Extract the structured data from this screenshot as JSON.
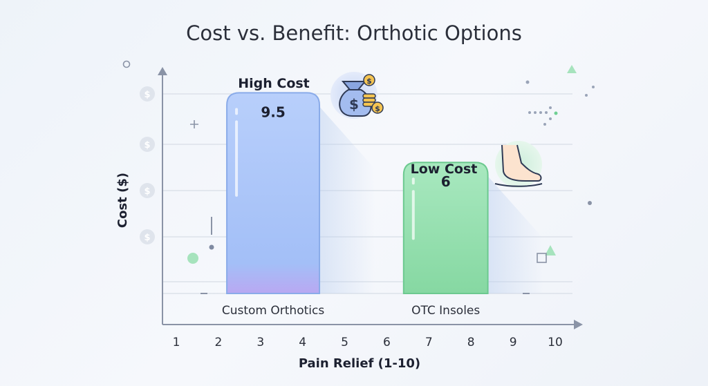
{
  "chart_data": {
    "type": "bar",
    "title": "Cost vs. Benefit: Orthotic Options",
    "xlabel": "Pain Relief (1-10)",
    "ylabel": "Cost ($)",
    "x_ticks": [
      "1",
      "2",
      "3",
      "4",
      "5",
      "6",
      "7",
      "8",
      "9",
      "10"
    ],
    "xlim": [
      1,
      10
    ],
    "ylim": [
      0,
      10
    ],
    "y_tick_icon": "dollar-coin-icon",
    "grid": true,
    "categories": [
      "Custom Orthotics",
      "OTC Insoles"
    ],
    "values": [
      9.5,
      6
    ],
    "value_labels": [
      "9.5",
      "6"
    ],
    "bar_x_span": [
      [
        2.2,
        4.4
      ],
      [
        6.4,
        8.4
      ]
    ],
    "annotations": [
      {
        "text": "High Cost",
        "icon": "money-bag-icon",
        "for": "Custom Orthotics"
      },
      {
        "text": "Low Cost",
        "icon": "foot-icon",
        "for": "OTC Insoles"
      }
    ],
    "colors": {
      "custom_orthotics": "#a8c4f8",
      "otc_insoles": "#98e0b0",
      "axis": "#8a93a6",
      "grid": "#d8dde6"
    }
  }
}
